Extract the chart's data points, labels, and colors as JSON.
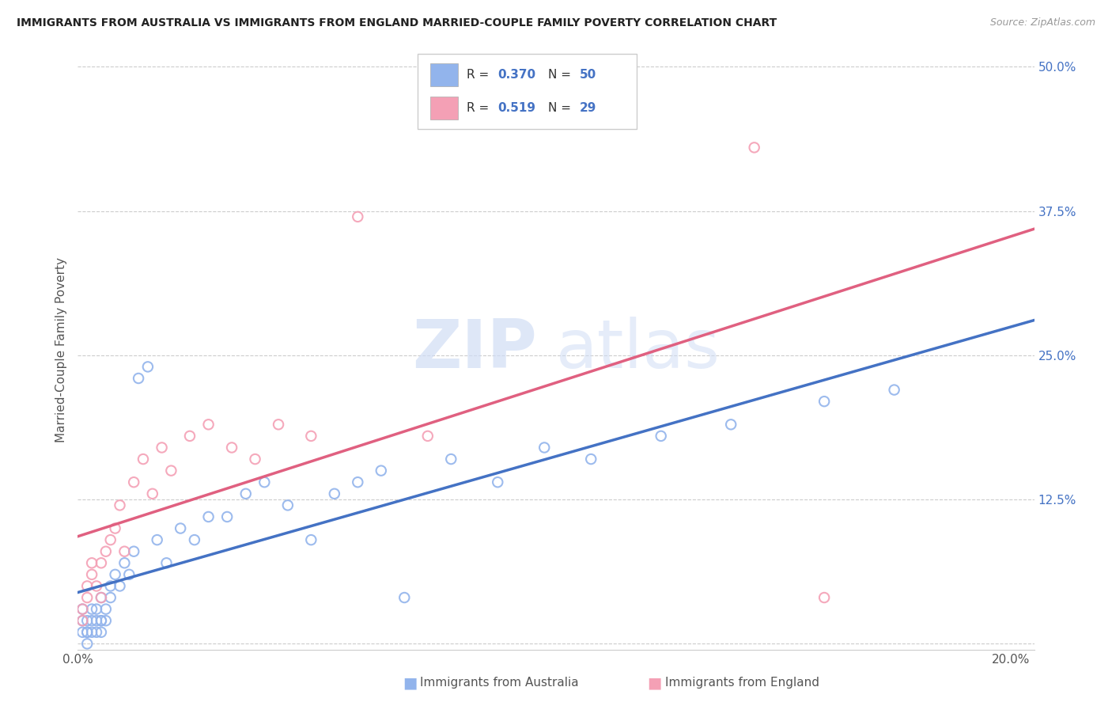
{
  "title": "IMMIGRANTS FROM AUSTRALIA VS IMMIGRANTS FROM ENGLAND MARRIED-COUPLE FAMILY POVERTY CORRELATION CHART",
  "source": "Source: ZipAtlas.com",
  "ylabel": "Married-Couple Family Poverty",
  "legend_label_1": "Immigrants from Australia",
  "legend_label_2": "Immigrants from England",
  "R1": 0.37,
  "N1": 50,
  "R2": 0.519,
  "N2": 29,
  "color1": "#92b4ec",
  "color2": "#f4a0b5",
  "line_color1": "#4472c4",
  "line_color2": "#e06080",
  "xlim": [
    0.0,
    0.205
  ],
  "ylim": [
    -0.005,
    0.515
  ],
  "xtick_vals": [
    0.0,
    0.05,
    0.1,
    0.15,
    0.2
  ],
  "ytick_vals": [
    0.0,
    0.125,
    0.25,
    0.375,
    0.5
  ],
  "watermark_zip": "ZIP",
  "watermark_atlas": "atlas",
  "background_color": "#ffffff",
  "grid_color": "#cccccc",
  "title_color": "#222222",
  "source_color": "#999999",
  "tick_color": "#4472c4",
  "label_color": "#555555",
  "australia_x": [
    0.001,
    0.001,
    0.001,
    0.002,
    0.002,
    0.002,
    0.002,
    0.003,
    0.003,
    0.003,
    0.004,
    0.004,
    0.004,
    0.005,
    0.005,
    0.005,
    0.005,
    0.006,
    0.006,
    0.007,
    0.007,
    0.008,
    0.009,
    0.01,
    0.011,
    0.012,
    0.013,
    0.015,
    0.017,
    0.019,
    0.022,
    0.025,
    0.028,
    0.032,
    0.036,
    0.04,
    0.045,
    0.05,
    0.055,
    0.06,
    0.065,
    0.07,
    0.08,
    0.09,
    0.1,
    0.11,
    0.125,
    0.14,
    0.16,
    0.175
  ],
  "australia_y": [
    0.02,
    0.01,
    0.03,
    0.01,
    0.02,
    0.0,
    0.01,
    0.02,
    0.01,
    0.03,
    0.02,
    0.01,
    0.03,
    0.02,
    0.01,
    0.04,
    0.02,
    0.03,
    0.02,
    0.04,
    0.05,
    0.06,
    0.05,
    0.07,
    0.06,
    0.08,
    0.23,
    0.24,
    0.09,
    0.07,
    0.1,
    0.09,
    0.11,
    0.11,
    0.13,
    0.14,
    0.12,
    0.09,
    0.13,
    0.14,
    0.15,
    0.04,
    0.16,
    0.14,
    0.17,
    0.16,
    0.18,
    0.19,
    0.21,
    0.22
  ],
  "england_x": [
    0.001,
    0.001,
    0.002,
    0.002,
    0.003,
    0.003,
    0.004,
    0.005,
    0.005,
    0.006,
    0.007,
    0.008,
    0.009,
    0.01,
    0.012,
    0.014,
    0.016,
    0.018,
    0.02,
    0.024,
    0.028,
    0.033,
    0.038,
    0.043,
    0.05,
    0.06,
    0.075,
    0.145,
    0.16
  ],
  "england_y": [
    0.03,
    0.02,
    0.05,
    0.04,
    0.06,
    0.07,
    0.05,
    0.07,
    0.04,
    0.08,
    0.09,
    0.1,
    0.12,
    0.08,
    0.14,
    0.16,
    0.13,
    0.17,
    0.15,
    0.18,
    0.19,
    0.17,
    0.16,
    0.19,
    0.18,
    0.37,
    0.18,
    0.43,
    0.04
  ]
}
